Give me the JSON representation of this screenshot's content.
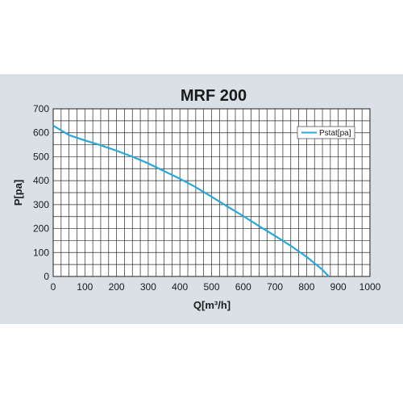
{
  "chart_data": {
    "type": "line",
    "title": "MRF 200",
    "xlabel": "Q[m³/h]",
    "ylabel": "P[pa]",
    "xlim": [
      0,
      1000
    ],
    "ylim": [
      0,
      700
    ],
    "xticks": [
      0,
      100,
      200,
      300,
      400,
      500,
      600,
      700,
      800,
      900,
      1000
    ],
    "yticks": [
      0,
      100,
      200,
      300,
      400,
      500,
      600,
      700
    ],
    "grid": true,
    "legend_position": "top-right",
    "series": [
      {
        "name": "Pstat[pa]",
        "color": "#2aa6d9",
        "x": [
          0,
          50,
          100,
          150,
          200,
          250,
          300,
          350,
          400,
          450,
          500,
          550,
          600,
          650,
          700,
          750,
          800,
          850,
          870
        ],
        "y": [
          630,
          590,
          568,
          548,
          525,
          500,
          472,
          440,
          408,
          373,
          333,
          292,
          252,
          210,
          170,
          128,
          82,
          28,
          0
        ]
      }
    ]
  }
}
